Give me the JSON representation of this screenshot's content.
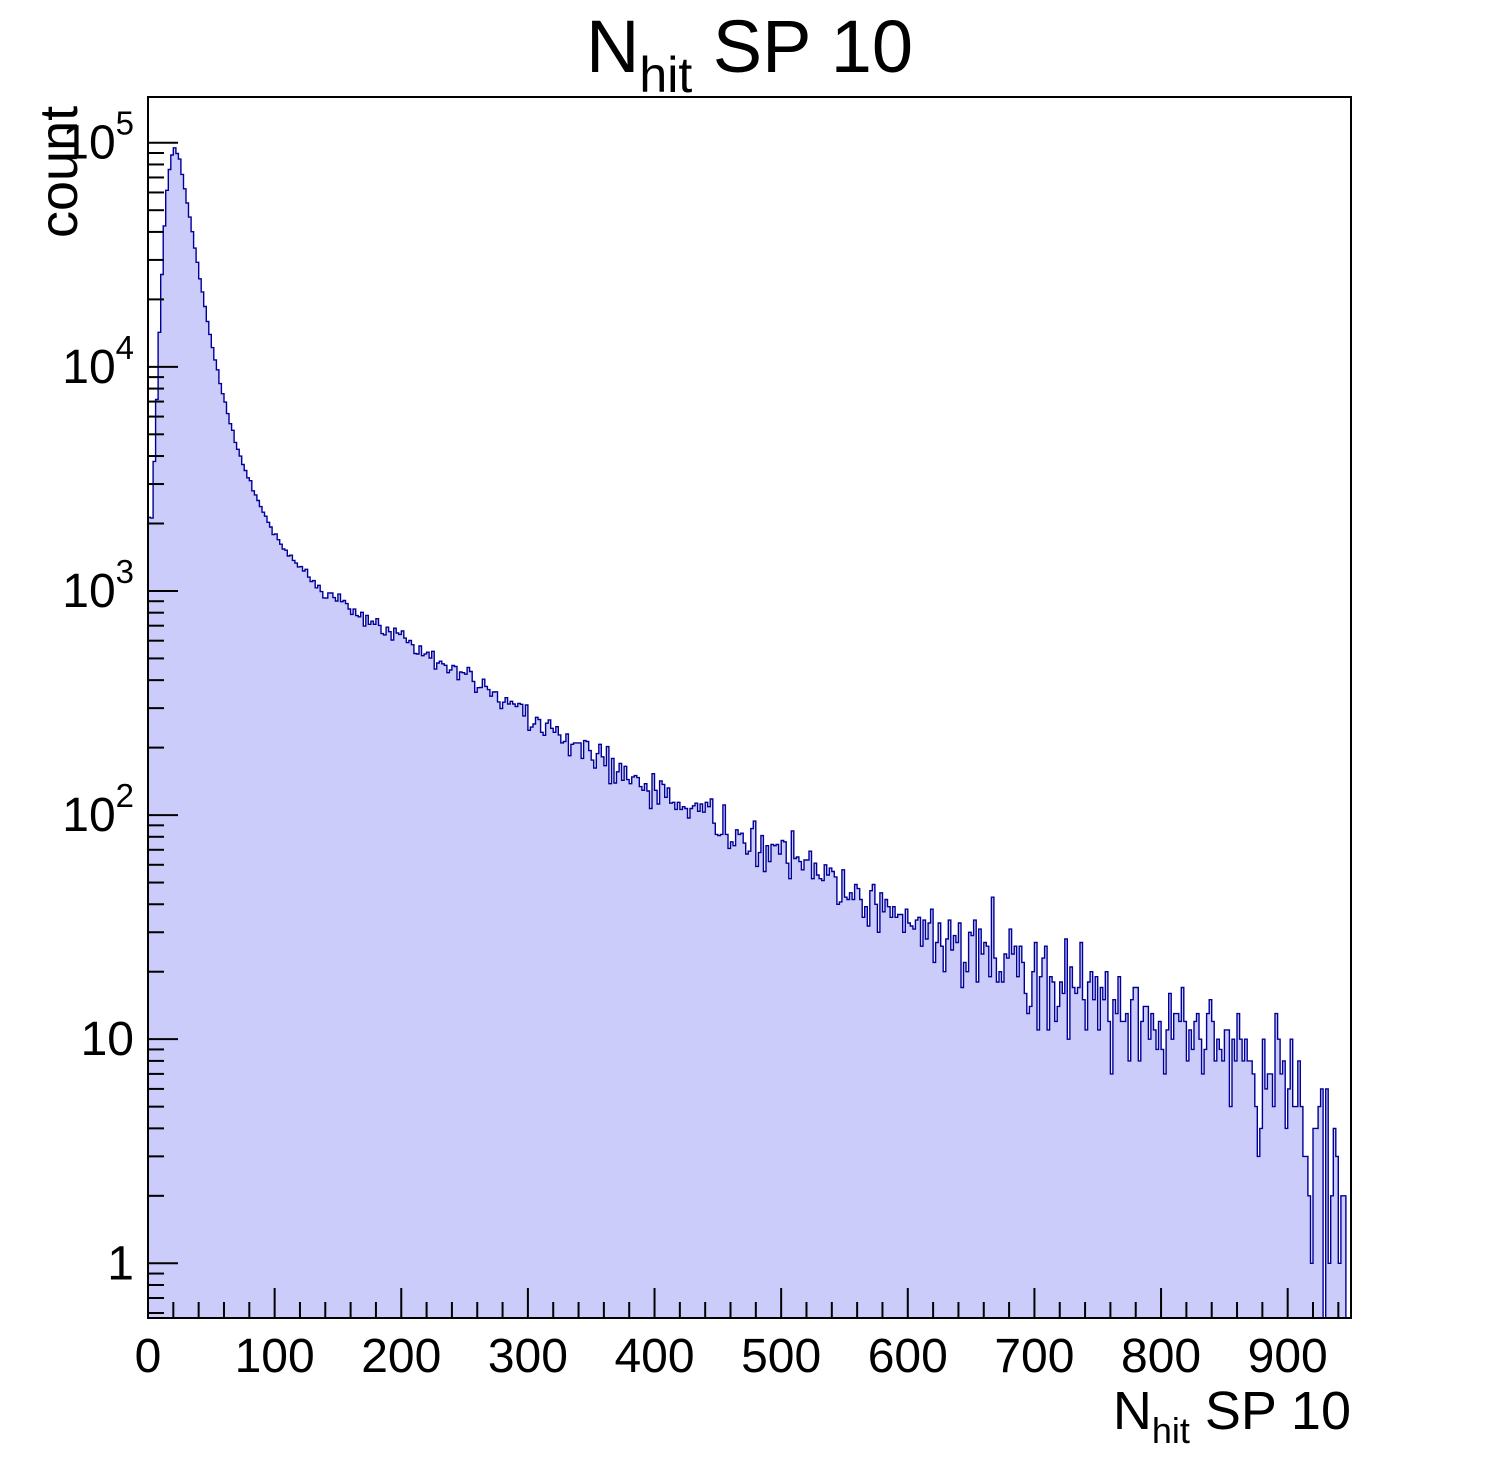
{
  "chart_data": {
    "type": "histogram",
    "title": {
      "main": "N",
      "sub": "hit",
      "rest": " SP 10"
    },
    "xtitle": {
      "main": "N",
      "sub": "hit",
      "rest": " SP 10"
    },
    "ylabel": "count",
    "y_scale": "log",
    "grid": false,
    "legend": "none",
    "x_range": [
      0,
      950
    ],
    "y_range": [
      0.57,
      160000
    ],
    "x_ticks": [
      0,
      100,
      200,
      300,
      400,
      500,
      600,
      700,
      800,
      900
    ],
    "x_minor_step": 20,
    "y_ticks": [
      {
        "value": 1,
        "label": "1"
      },
      {
        "value": 10,
        "label": "10"
      },
      {
        "value": 100,
        "base": "10",
        "exp": "2"
      },
      {
        "value": 1000,
        "base": "10",
        "exp": "3"
      },
      {
        "value": 10000,
        "base": "10",
        "exp": "4"
      },
      {
        "value": 100000,
        "base": "10",
        "exp": "5"
      }
    ],
    "bin_width": 2,
    "peak": {
      "x": 21,
      "count": 95000
    },
    "anchors": [
      [
        0,
        3000
      ],
      [
        2,
        1600
      ],
      [
        6,
        5000
      ],
      [
        10,
        20000
      ],
      [
        14,
        55000
      ],
      [
        18,
        85000
      ],
      [
        21,
        95000
      ],
      [
        25,
        84000
      ],
      [
        30,
        58000
      ],
      [
        35,
        40000
      ],
      [
        40,
        27000
      ],
      [
        45,
        18500
      ],
      [
        50,
        13000
      ],
      [
        55,
        9500
      ],
      [
        60,
        7200
      ],
      [
        65,
        5600
      ],
      [
        70,
        4500
      ],
      [
        75,
        3700
      ],
      [
        80,
        3100
      ],
      [
        85,
        2650
      ],
      [
        90,
        2300
      ],
      [
        95,
        2000
      ],
      [
        100,
        1800
      ],
      [
        110,
        1480
      ],
      [
        120,
        1270
      ],
      [
        130,
        1120
      ],
      [
        140,
        1000
      ],
      [
        150,
        920
      ],
      [
        160,
        845
      ],
      [
        170,
        780
      ],
      [
        180,
        720
      ],
      [
        190,
        665
      ],
      [
        200,
        615
      ],
      [
        210,
        565
      ],
      [
        220,
        520
      ],
      [
        230,
        483
      ],
      [
        240,
        450
      ],
      [
        250,
        420
      ],
      [
        260,
        390
      ],
      [
        270,
        360
      ],
      [
        280,
        332
      ],
      [
        290,
        305
      ],
      [
        300,
        282
      ],
      [
        310,
        260
      ],
      [
        320,
        240
      ],
      [
        330,
        222
      ],
      [
        340,
        206
      ],
      [
        350,
        190
      ],
      [
        360,
        176
      ],
      [
        370,
        164
      ],
      [
        380,
        152
      ],
      [
        390,
        142
      ],
      [
        400,
        132
      ],
      [
        410,
        123
      ],
      [
        420,
        114
      ],
      [
        430,
        107
      ],
      [
        440,
        100
      ],
      [
        450,
        93
      ],
      [
        460,
        87
      ],
      [
        470,
        82
      ],
      [
        480,
        77
      ],
      [
        490,
        72
      ],
      [
        500,
        67
      ],
      [
        510,
        63
      ],
      [
        520,
        59
      ],
      [
        530,
        55
      ],
      [
        540,
        52
      ],
      [
        550,
        48
      ],
      [
        560,
        45
      ],
      [
        570,
        43
      ],
      [
        580,
        40
      ],
      [
        590,
        38
      ],
      [
        600,
        36
      ],
      [
        610,
        34
      ],
      [
        620,
        32
      ],
      [
        630,
        30
      ],
      [
        640,
        28
      ],
      [
        650,
        26
      ],
      [
        660,
        25
      ],
      [
        670,
        23
      ],
      [
        680,
        22
      ],
      [
        690,
        21
      ],
      [
        700,
        20
      ],
      [
        710,
        19
      ],
      [
        720,
        18
      ],
      [
        730,
        17
      ],
      [
        740,
        16
      ],
      [
        750,
        15
      ],
      [
        760,
        14.5
      ],
      [
        770,
        14
      ],
      [
        780,
        13.5
      ],
      [
        790,
        13
      ],
      [
        800,
        12.5
      ],
      [
        810,
        12
      ],
      [
        820,
        11.5
      ],
      [
        830,
        11
      ],
      [
        840,
        10.5
      ],
      [
        850,
        10
      ],
      [
        860,
        9.5
      ],
      [
        870,
        9
      ],
      [
        880,
        8.5
      ],
      [
        890,
        8
      ],
      [
        900,
        7.5
      ],
      [
        910,
        6
      ],
      [
        920,
        4
      ],
      [
        930,
        2.5
      ],
      [
        940,
        1.5
      ],
      [
        950,
        1
      ]
    ],
    "noise_seed": 20,
    "colors": {
      "fill": "#ccccfa",
      "line": "#000099",
      "axis": "#000000",
      "background": "#ffffff"
    }
  }
}
